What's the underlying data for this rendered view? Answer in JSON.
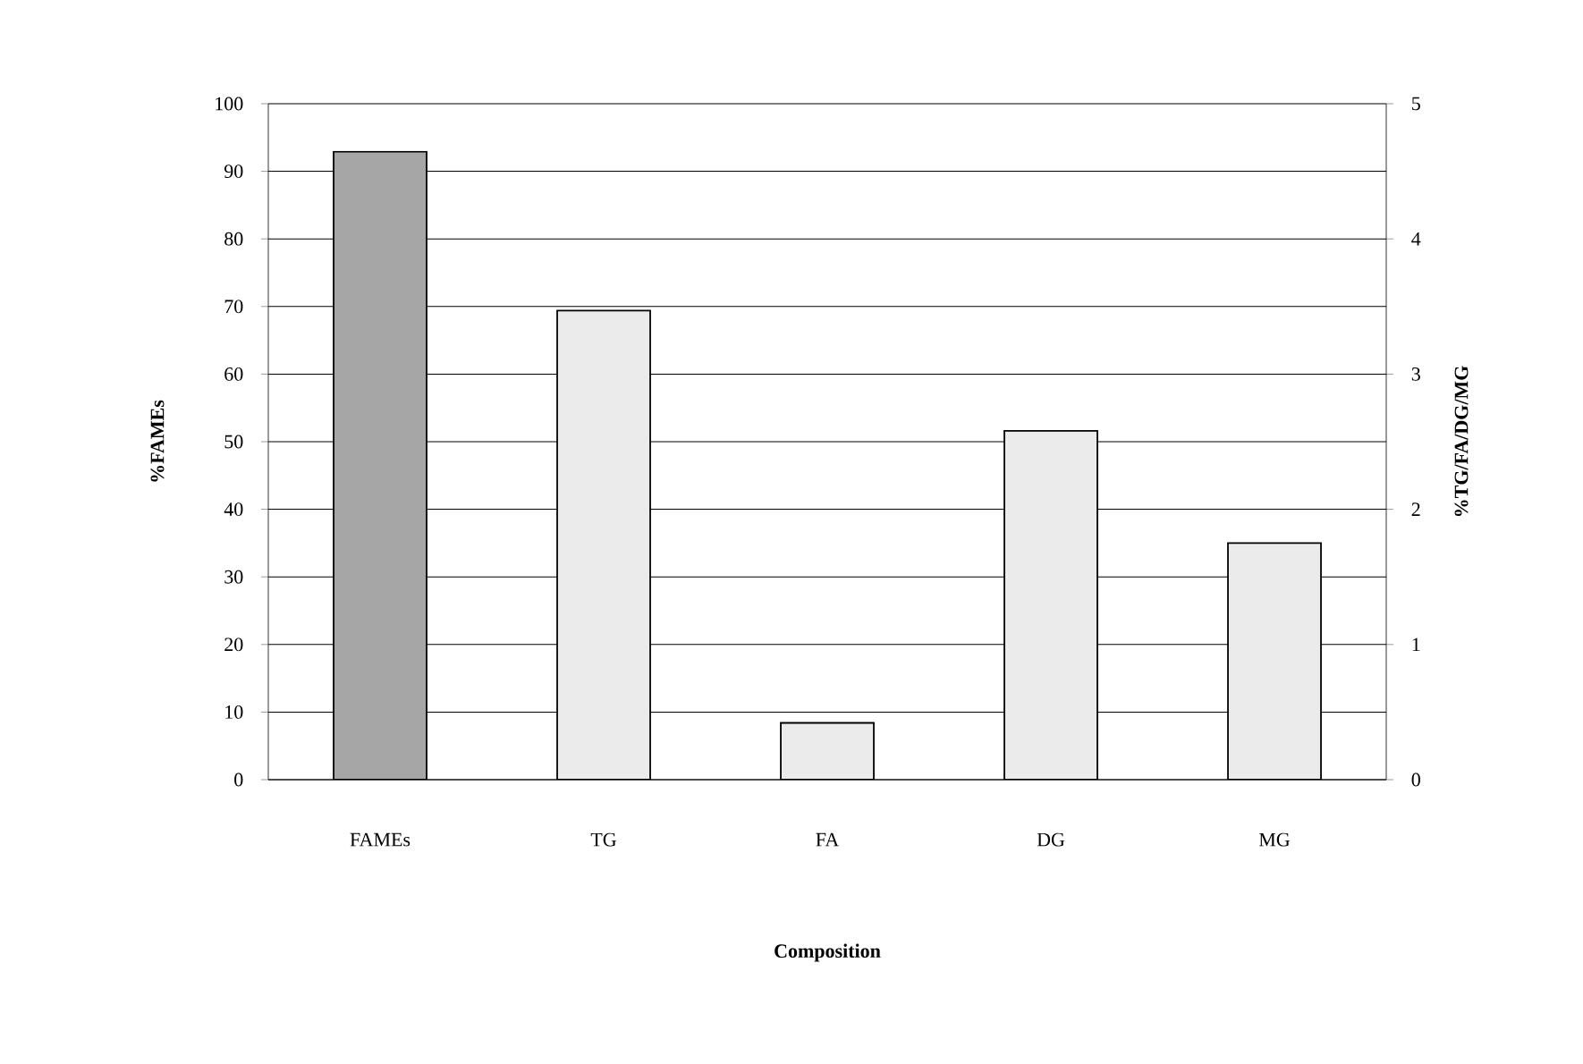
{
  "chart_data": {
    "type": "bar",
    "categories": [
      "FAMEs",
      "TG",
      "FA",
      "DG",
      "MG"
    ],
    "xlabel": "Composition",
    "ylabel": "%FAMEs",
    "y2label": "%TG/FA/DG/MG",
    "series": [
      {
        "color": "#a6a6a6",
        "values": [
          92.9,
          null,
          null,
          null,
          null
        ]
      },
      {
        "color": "#ebebeb",
        "axis": "y2",
        "values": [
          null,
          3.47,
          0.42,
          2.58,
          1.75
        ]
      }
    ],
    "ylim": [
      0,
      100
    ],
    "yticks": [
      0,
      10,
      20,
      30,
      40,
      50,
      60,
      70,
      80,
      90,
      100
    ],
    "y2lim": [
      0,
      5
    ],
    "y2ticks": [
      0,
      1,
      2,
      3,
      4,
      5
    ],
    "grid": "y"
  }
}
